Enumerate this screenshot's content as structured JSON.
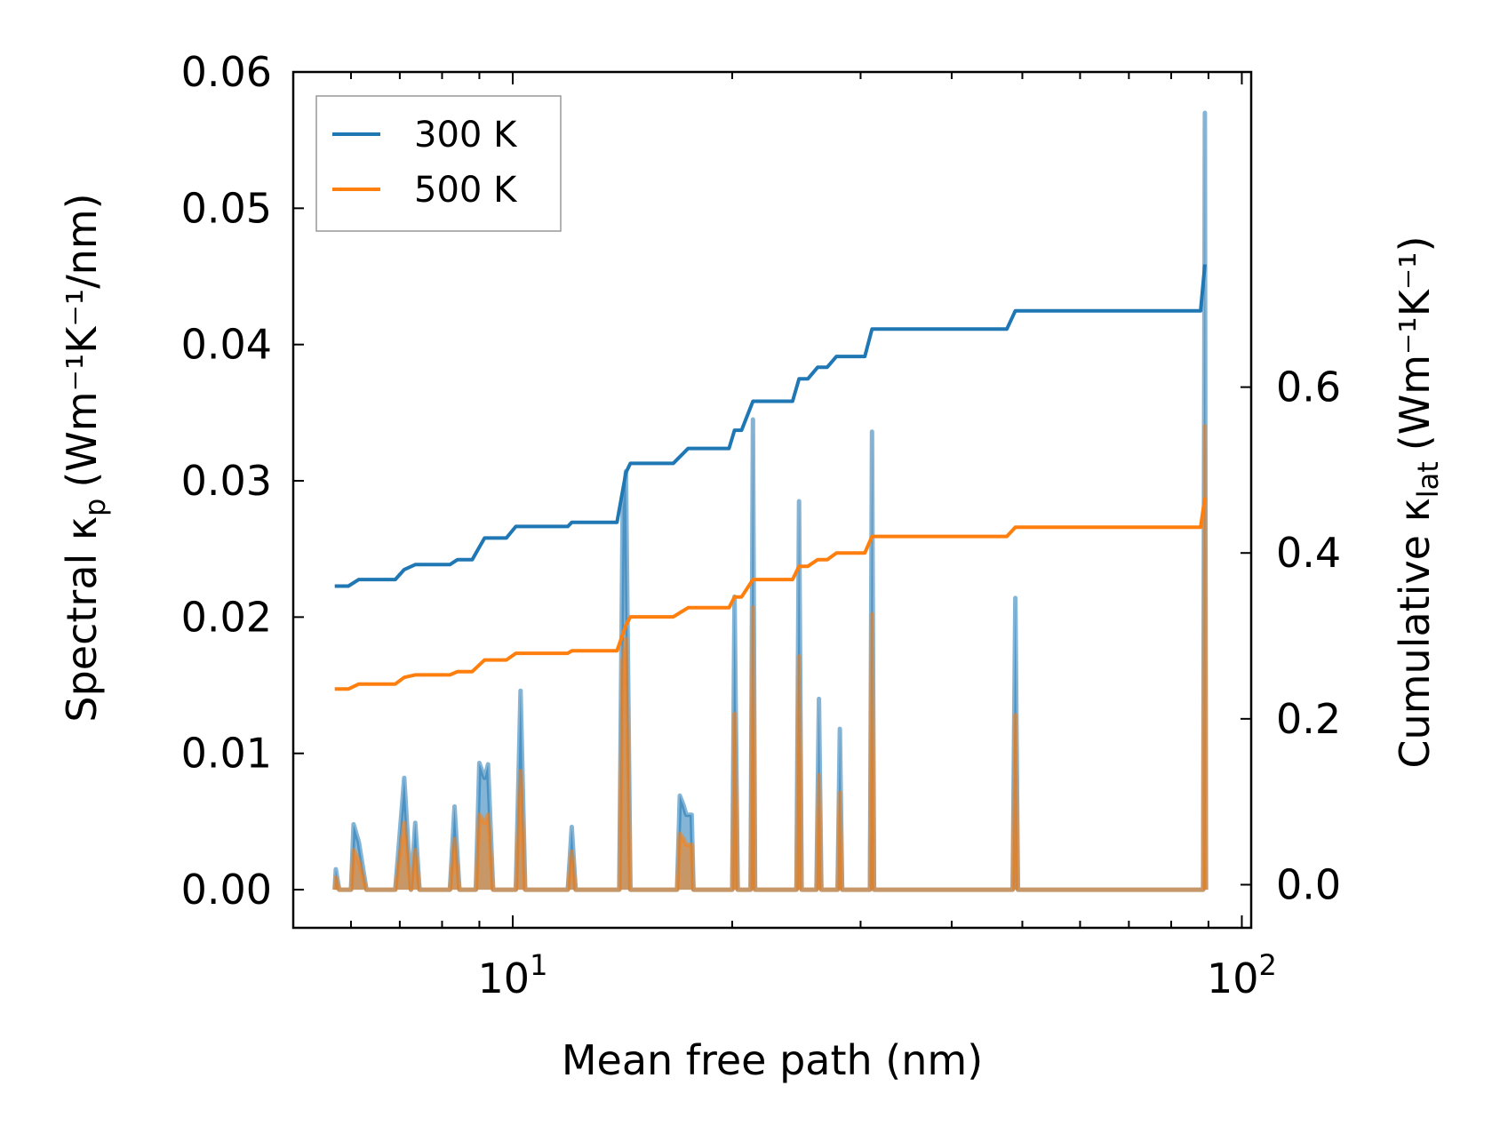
{
  "chart_data": {
    "type": "line",
    "title": "",
    "xlabel": "Mean free path (nm)",
    "ylabel_left": {
      "main": "Spectral κ",
      "sub": "p",
      "units": "(Wm⁻¹K⁻¹/nm)"
    },
    "ylabel_right": {
      "main": "Cumulative κ",
      "sub": "lat",
      "units": "(Wm⁻¹K⁻¹)"
    },
    "x_scale": "log",
    "xlim": [
      5.0,
      103.0
    ],
    "xticks": [
      {
        "value": 10,
        "base": "10",
        "exp": "1"
      },
      {
        "value": 100,
        "base": "10",
        "exp": "2"
      }
    ],
    "ylim_left": [
      -0.0028,
      0.06
    ],
    "yticks_left": [
      "0.00",
      "0.01",
      "0.02",
      "0.03",
      "0.04",
      "0.05",
      "0.06"
    ],
    "ylim_right": [
      -0.052,
      0.98
    ],
    "yticks_right": [
      "0.0",
      "0.2",
      "0.4",
      "0.6"
    ],
    "legend": {
      "position": "top-left",
      "entries": [
        "300 K",
        "500 K"
      ]
    },
    "colors": {
      "s300": "#1f77b4",
      "s500": "#ff7f0e",
      "fill300": "#1f77b4",
      "fill500": "#ff7f0e"
    },
    "spectral_300K": [
      [
        5.7,
        0
      ],
      [
        5.72,
        0.0015
      ],
      [
        5.78,
        0
      ],
      [
        6.0,
        0
      ],
      [
        6.05,
        0.0048
      ],
      [
        6.15,
        0.0035
      ],
      [
        6.3,
        0
      ],
      [
        6.9,
        0
      ],
      [
        7.1,
        0.0082
      ],
      [
        7.25,
        0
      ],
      [
        7.35,
        0.0049
      ],
      [
        7.45,
        0
      ],
      [
        8.2,
        0
      ],
      [
        8.32,
        0.0061
      ],
      [
        8.45,
        0
      ],
      [
        8.9,
        0
      ],
      [
        9.0,
        0.0093
      ],
      [
        9.15,
        0.0082
      ],
      [
        9.25,
        0.0092
      ],
      [
        9.4,
        0
      ],
      [
        10.1,
        0
      ],
      [
        10.25,
        0.0146
      ],
      [
        10.4,
        0
      ],
      [
        11.9,
        0
      ],
      [
        12.05,
        0.0046
      ],
      [
        12.2,
        0
      ],
      [
        14.0,
        0
      ],
      [
        14.15,
        0.028
      ],
      [
        14.3,
        0.0307
      ],
      [
        14.5,
        0
      ],
      [
        16.8,
        0
      ],
      [
        16.95,
        0.0069
      ],
      [
        17.15,
        0.0062
      ],
      [
        17.3,
        0.0055
      ],
      [
        17.6,
        0.0055
      ],
      [
        17.7,
        0
      ],
      [
        20.0,
        0
      ],
      [
        20.15,
        0.0215
      ],
      [
        20.35,
        0
      ],
      [
        21.2,
        0
      ],
      [
        21.35,
        0.0345
      ],
      [
        21.5,
        0
      ],
      [
        24.5,
        0
      ],
      [
        24.7,
        0.0285
      ],
      [
        24.9,
        0
      ],
      [
        26.1,
        0
      ],
      [
        26.3,
        0.014
      ],
      [
        26.5,
        0
      ],
      [
        27.9,
        0
      ],
      [
        28.1,
        0.0118
      ],
      [
        28.3,
        0
      ],
      [
        30.9,
        0
      ],
      [
        31.1,
        0.0336
      ],
      [
        31.3,
        0
      ],
      [
        48.5,
        0
      ],
      [
        48.9,
        0.0214
      ],
      [
        49.3,
        0
      ],
      [
        88.5,
        0
      ],
      [
        89.0,
        0.057
      ],
      [
        89.3,
        0
      ]
    ],
    "spectral_500K": [
      [
        5.7,
        0
      ],
      [
        5.72,
        0.0009
      ],
      [
        5.78,
        0
      ],
      [
        6.0,
        0
      ],
      [
        6.05,
        0.0029
      ],
      [
        6.15,
        0.0021
      ],
      [
        6.3,
        0
      ],
      [
        6.9,
        0
      ],
      [
        7.1,
        0.0049
      ],
      [
        7.25,
        0
      ],
      [
        7.35,
        0.0029
      ],
      [
        7.45,
        0
      ],
      [
        8.2,
        0
      ],
      [
        8.32,
        0.0037
      ],
      [
        8.45,
        0
      ],
      [
        8.9,
        0
      ],
      [
        9.0,
        0.0055
      ],
      [
        9.15,
        0.0049
      ],
      [
        9.25,
        0.0055
      ],
      [
        9.4,
        0
      ],
      [
        10.1,
        0
      ],
      [
        10.25,
        0.0087
      ],
      [
        10.4,
        0
      ],
      [
        11.9,
        0
      ],
      [
        12.05,
        0.0028
      ],
      [
        12.2,
        0
      ],
      [
        14.0,
        0
      ],
      [
        14.15,
        0.0168
      ],
      [
        14.3,
        0.0184
      ],
      [
        14.5,
        0
      ],
      [
        16.8,
        0
      ],
      [
        16.95,
        0.0041
      ],
      [
        17.15,
        0.0037
      ],
      [
        17.3,
        0.0033
      ],
      [
        17.6,
        0.0033
      ],
      [
        17.7,
        0
      ],
      [
        20.0,
        0
      ],
      [
        20.15,
        0.0129
      ],
      [
        20.35,
        0
      ],
      [
        21.2,
        0
      ],
      [
        21.35,
        0.0207
      ],
      [
        21.5,
        0
      ],
      [
        24.5,
        0
      ],
      [
        24.7,
        0.0171
      ],
      [
        24.9,
        0
      ],
      [
        26.1,
        0
      ],
      [
        26.3,
        0.0084
      ],
      [
        26.5,
        0
      ],
      [
        27.9,
        0
      ],
      [
        28.1,
        0.0071
      ],
      [
        28.3,
        0
      ],
      [
        30.9,
        0
      ],
      [
        31.1,
        0.0202
      ],
      [
        31.3,
        0
      ],
      [
        48.5,
        0
      ],
      [
        48.9,
        0.0128
      ],
      [
        49.3,
        0
      ],
      [
        88.5,
        0
      ],
      [
        89.0,
        0.034
      ],
      [
        89.3,
        0
      ]
    ],
    "cumulative_300K": [
      [
        5.7,
        0.36
      ],
      [
        5.95,
        0.36
      ],
      [
        6.15,
        0.368
      ],
      [
        6.9,
        0.368
      ],
      [
        7.1,
        0.38
      ],
      [
        7.35,
        0.386
      ],
      [
        8.2,
        0.386
      ],
      [
        8.4,
        0.392
      ],
      [
        8.8,
        0.392
      ],
      [
        9.15,
        0.418
      ],
      [
        9.8,
        0.418
      ],
      [
        10.1,
        0.432
      ],
      [
        11.9,
        0.432
      ],
      [
        12.05,
        0.437
      ],
      [
        13.9,
        0.437
      ],
      [
        14.3,
        0.497
      ],
      [
        14.5,
        0.508
      ],
      [
        16.6,
        0.508
      ],
      [
        17.4,
        0.526
      ],
      [
        19.8,
        0.526
      ],
      [
        20.15,
        0.548
      ],
      [
        20.6,
        0.548
      ],
      [
        21.35,
        0.583
      ],
      [
        24.2,
        0.583
      ],
      [
        24.7,
        0.61
      ],
      [
        25.4,
        0.61
      ],
      [
        26.2,
        0.624
      ],
      [
        27.0,
        0.624
      ],
      [
        27.8,
        0.637
      ],
      [
        30.4,
        0.637
      ],
      [
        31.1,
        0.67
      ],
      [
        47.6,
        0.67
      ],
      [
        48.9,
        0.692
      ],
      [
        87.8,
        0.692
      ],
      [
        89.0,
        0.748
      ]
    ],
    "cumulative_500K": [
      [
        5.7,
        0.236
      ],
      [
        5.95,
        0.236
      ],
      [
        6.15,
        0.242
      ],
      [
        6.9,
        0.242
      ],
      [
        7.1,
        0.25
      ],
      [
        7.35,
        0.253
      ],
      [
        8.2,
        0.253
      ],
      [
        8.4,
        0.257
      ],
      [
        8.8,
        0.257
      ],
      [
        9.15,
        0.271
      ],
      [
        9.8,
        0.271
      ],
      [
        10.1,
        0.279
      ],
      [
        11.9,
        0.279
      ],
      [
        12.05,
        0.282
      ],
      [
        13.9,
        0.282
      ],
      [
        14.3,
        0.313
      ],
      [
        14.5,
        0.323
      ],
      [
        16.6,
        0.323
      ],
      [
        17.4,
        0.334
      ],
      [
        19.8,
        0.334
      ],
      [
        20.15,
        0.347
      ],
      [
        20.6,
        0.347
      ],
      [
        21.35,
        0.368
      ],
      [
        24.2,
        0.368
      ],
      [
        24.7,
        0.384
      ],
      [
        25.4,
        0.384
      ],
      [
        26.2,
        0.392
      ],
      [
        27.0,
        0.392
      ],
      [
        27.8,
        0.4
      ],
      [
        30.4,
        0.4
      ],
      [
        31.1,
        0.42
      ],
      [
        47.6,
        0.42
      ],
      [
        48.9,
        0.431
      ],
      [
        87.8,
        0.431
      ],
      [
        89.0,
        0.467
      ]
    ]
  }
}
